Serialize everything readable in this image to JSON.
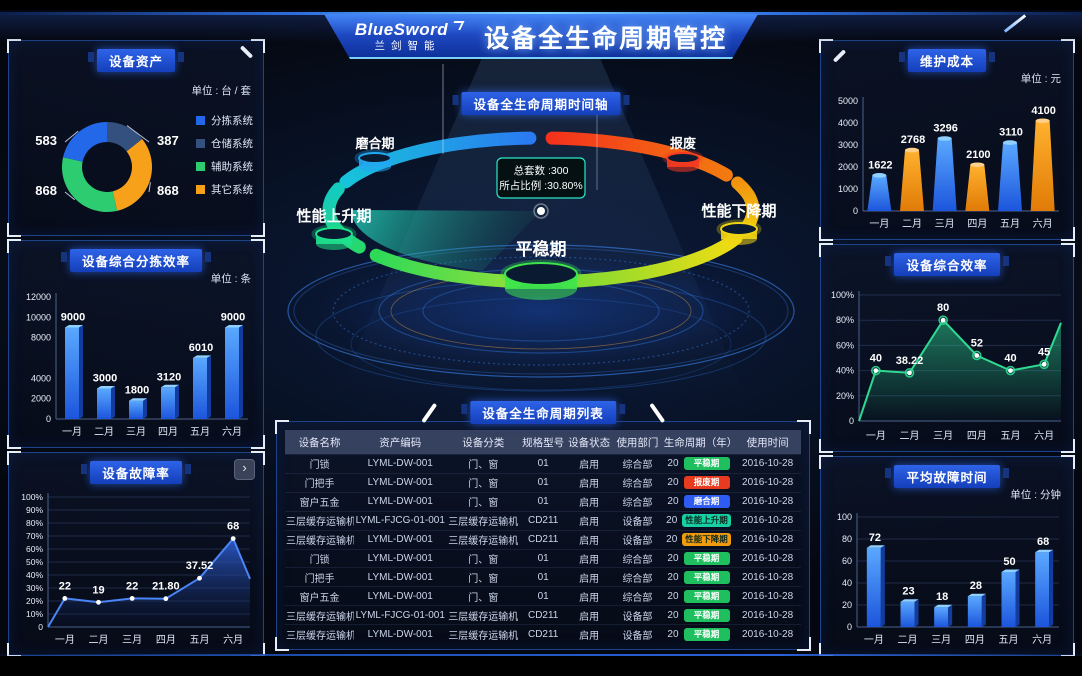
{
  "header": {
    "logo_title": "BlueSword",
    "logo_subtitle": "兰剑智能",
    "title": "设备全生命周期管控"
  },
  "panels": {
    "assets": {
      "title": "设备资产",
      "unit": "单位 : 台 / 套"
    },
    "sorting": {
      "title": "设备综合分拣效率",
      "unit": "单位 : 条"
    },
    "fault": {
      "title": "设备故障率",
      "expand_icon": "›"
    },
    "cost": {
      "title": "维护成本",
      "unit": "单位 : 元"
    },
    "eff": {
      "title": "设备综合效率"
    },
    "mttr": {
      "title": "平均故障时间",
      "unit": "单位 : 分钟"
    }
  },
  "lifecycle": {
    "title": "设备全生命周期时间轴",
    "tooltip": {
      "total_label": "总套数 :300",
      "ratio_label": "所占比例 :30.80%"
    },
    "stages": [
      {
        "name": "磨合期",
        "color": "#22a8f0"
      },
      {
        "name": "报废",
        "color": "#f53a22"
      },
      {
        "name": "性能上升期",
        "color": "#1fe08d"
      },
      {
        "name": "性能下降期",
        "color": "#f0d414"
      },
      {
        "name": "平稳期",
        "color": "#3fe44c"
      }
    ]
  },
  "table": {
    "title": "设备全生命周期列表",
    "columns": [
      "设备名称",
      "资产编码",
      "设备分类",
      "规格型号",
      "设备状态",
      "使用部门",
      "生命周期（年）",
      "使用时间"
    ],
    "stage_colors": {
      "green": "#1fbf5f",
      "red": "#e83a1e",
      "blue": "#2e5bf2",
      "teal": "#16cfa2",
      "orange": "#f29b0d"
    },
    "rows": [
      {
        "name": "门锁",
        "code": "LYML-DW-001",
        "category": "门、窗",
        "model": "01",
        "status": "启用",
        "dept": "综合部",
        "years": "20",
        "stage": "平稳期",
        "stage_color": "green",
        "date": "2016-10-28"
      },
      {
        "name": "门把手",
        "code": "LYML-DW-001",
        "category": "门、窗",
        "model": "01",
        "status": "启用",
        "dept": "综合部",
        "years": "20",
        "stage": "报废期",
        "stage_color": "red",
        "date": "2016-10-28"
      },
      {
        "name": "窗户五金",
        "code": "LYML-DW-001",
        "category": "门、窗",
        "model": "01",
        "status": "启用",
        "dept": "综合部",
        "years": "20",
        "stage": "磨合期",
        "stage_color": "blue",
        "date": "2016-10-28"
      },
      {
        "name": "三层缓存运输机",
        "code": "LYML-FJCG-01-001",
        "category": "三层缓存运输机",
        "model": "CD211",
        "status": "启用",
        "dept": "设备部",
        "years": "20",
        "stage": "性能上升期",
        "stage_color": "teal",
        "date": "2016-10-28"
      },
      {
        "name": "三层缓存运输机",
        "code": "LYML-DW-001",
        "category": "三层缓存运输机",
        "model": "CD211",
        "status": "启用",
        "dept": "设备部",
        "years": "20",
        "stage": "性能下降期",
        "stage_color": "orange",
        "date": "2016-10-28"
      },
      {
        "name": "门锁",
        "code": "LYML-DW-001",
        "category": "门、窗",
        "model": "01",
        "status": "启用",
        "dept": "综合部",
        "years": "20",
        "stage": "平稳期",
        "stage_color": "green",
        "date": "2016-10-28"
      },
      {
        "name": "门把手",
        "code": "LYML-DW-001",
        "category": "门、窗",
        "model": "01",
        "status": "启用",
        "dept": "综合部",
        "years": "20",
        "stage": "平稳期",
        "stage_color": "green",
        "date": "2016-10-28"
      },
      {
        "name": "窗户五金",
        "code": "LYML-DW-001",
        "category": "门、窗",
        "model": "01",
        "status": "启用",
        "dept": "综合部",
        "years": "20",
        "stage": "平稳期",
        "stage_color": "green",
        "date": "2016-10-28"
      },
      {
        "name": "三层缓存运输机",
        "code": "LYML-FJCG-01-001",
        "category": "三层缓存运输机",
        "model": "CD211",
        "status": "启用",
        "dept": "设备部",
        "years": "20",
        "stage": "平稳期",
        "stage_color": "green",
        "date": "2016-10-28"
      },
      {
        "name": "三层缓存运输机",
        "code": "LYML-DW-001",
        "category": "三层缓存运输机",
        "model": "CD211",
        "status": "启用",
        "dept": "设备部",
        "years": "20",
        "stage": "平稳期",
        "stage_color": "green",
        "date": "2016-10-28"
      }
    ]
  },
  "chart_data": [
    {
      "id": "assets",
      "type": "pie",
      "donut": true,
      "title": "设备资产",
      "unit": "单位 : 台 / 套",
      "labels": [
        "分拣系统",
        "仓储系统",
        "辅助系统",
        "其它系统"
      ],
      "values": [
        583,
        387,
        868,
        868
      ],
      "colors": [
        "#2268e8",
        "#33507f",
        "#2ecc71",
        "#f7a11a"
      ],
      "draw_order": [
        1,
        3,
        2,
        0
      ],
      "legend_position": "right"
    },
    {
      "id": "sorting",
      "type": "bar",
      "title": "设备综合分拣效率",
      "ylabel": "条",
      "categories": [
        "一月",
        "二月",
        "三月",
        "四月",
        "五月",
        "六月"
      ],
      "values": [
        9000,
        3000,
        1800,
        3120,
        6010,
        9000
      ],
      "ylim": [
        0,
        12000
      ],
      "yticks": [
        {
          "v": 0,
          "label": "0"
        },
        {
          "v": 2000,
          "label": "2000"
        },
        {
          "v": 4000,
          "label": "4000"
        },
        {
          "v": 6000,
          "label": ""
        },
        {
          "v": 8000,
          "label": "8000"
        },
        {
          "v": 10000,
          "label": "10000"
        },
        {
          "v": 12000,
          "label": "12000"
        }
      ],
      "bar_colors": [
        "blue"
      ],
      "grid": false
    },
    {
      "id": "fault",
      "type": "line",
      "area": true,
      "title": "设备故障率",
      "categories": [
        "一月",
        "二月",
        "三月",
        "四月",
        "五月",
        "六月"
      ],
      "values": [
        22,
        19,
        22,
        21.8,
        37.52,
        68
      ],
      "labels": [
        "22",
        "19",
        "22",
        "21.80",
        "37.52",
        "68"
      ],
      "ylim": [
        0,
        100
      ],
      "ytick_step": 10,
      "ytick_suffix": "%",
      "line_color": "#4a86f7",
      "start_at_zero": true,
      "right_edge_value": 37,
      "grid": true
    },
    {
      "id": "cost",
      "type": "bar",
      "style": "taper",
      "title": "维护成本",
      "ylabel": "元",
      "categories": [
        "一月",
        "二月",
        "三月",
        "四月",
        "五月",
        "六月"
      ],
      "values": [
        1622,
        2768,
        3296,
        2100,
        3110,
        4100
      ],
      "ylim": [
        0,
        5000
      ],
      "ytick_step": 1000,
      "bar_colors": [
        "blue",
        "orange"
      ],
      "grid": false
    },
    {
      "id": "eff",
      "type": "line",
      "area": true,
      "title": "设备综合效率",
      "categories": [
        "一月",
        "二月",
        "三月",
        "四月",
        "五月",
        "六月"
      ],
      "values": [
        40,
        38.22,
        80,
        52,
        40,
        45
      ],
      "labels": [
        "40",
        "38.22",
        "80",
        "52",
        "40",
        "45"
      ],
      "ylim": [
        0,
        100
      ],
      "ytick_step": 20,
      "ytick_suffix": "%",
      "line_color": "#2fd992",
      "marker_halo": true,
      "start_at_zero": true,
      "right_edge_value": 78,
      "grid": true
    },
    {
      "id": "mttr",
      "type": "bar",
      "title": "平均故障时间",
      "ylabel": "分钟",
      "categories": [
        "一月",
        "二月",
        "三月",
        "四月",
        "五月",
        "六月"
      ],
      "values": [
        72,
        23,
        18,
        28,
        50,
        68
      ],
      "ylim": [
        0,
        100
      ],
      "ytick_step": 20,
      "bar_colors": [
        "blue"
      ],
      "grid": true
    }
  ]
}
